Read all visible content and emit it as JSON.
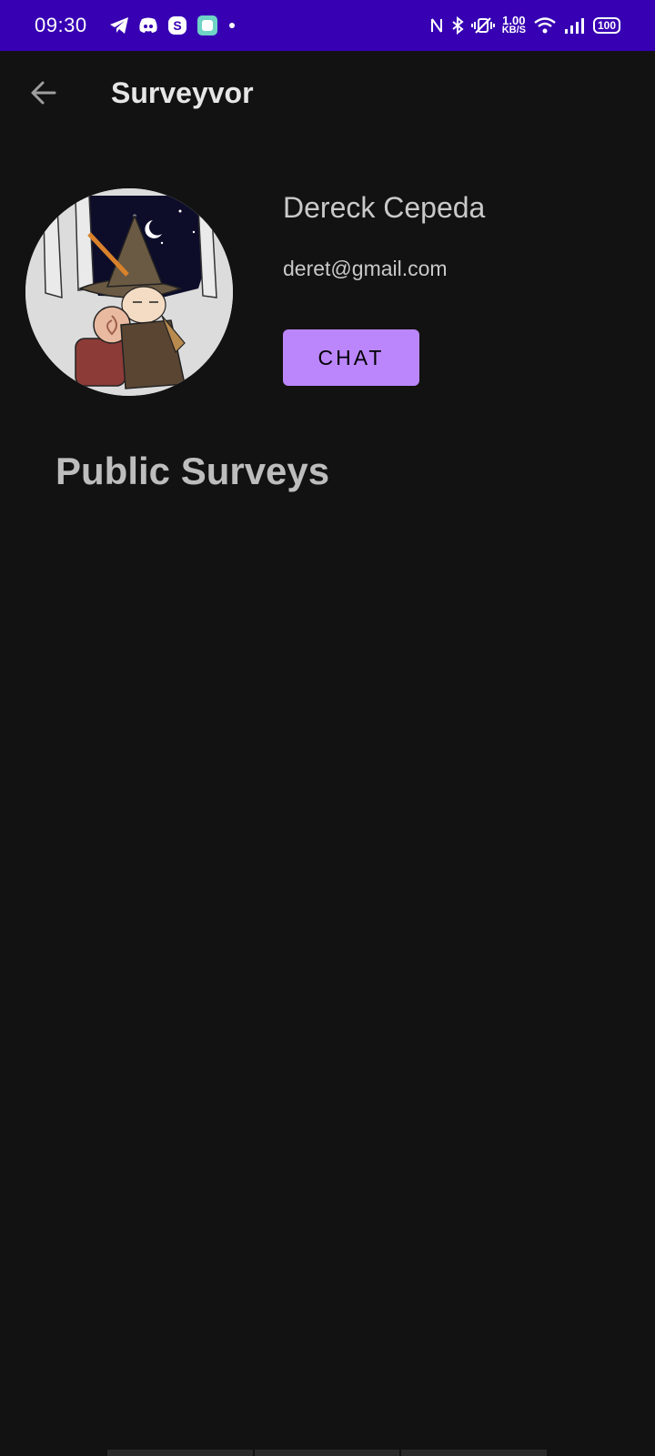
{
  "status_bar": {
    "time": "09:30",
    "left_icons": [
      "telegram-icon",
      "discord-icon",
      "skype-icon",
      "app-icon",
      "dot-icon"
    ],
    "net_speed_value": "1.00",
    "net_speed_unit": "KB/S",
    "battery": "100"
  },
  "app_bar": {
    "title": "Surveyvor",
    "back_icon": "arrow-left-icon"
  },
  "profile": {
    "name": "Dereck Cepeda",
    "email": "deret@gmail.com",
    "chat_label": "CHAT"
  },
  "section": {
    "title": "Public Surveys"
  },
  "colors": {
    "status_bar": "#3700b3",
    "background": "#121212",
    "button": "#bb86fc"
  }
}
